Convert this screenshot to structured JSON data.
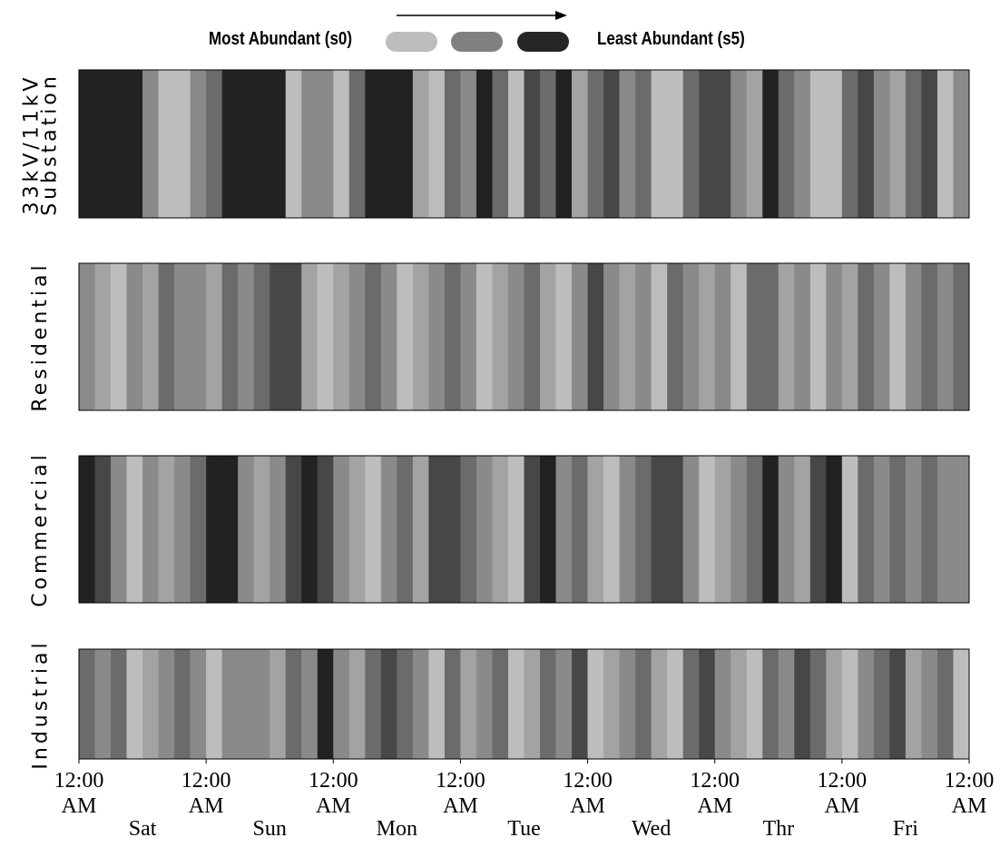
{
  "chart_data": {
    "type": "state-strip",
    "legend": {
      "labels": [
        "Most Abundant (s0)",
        "Least Abundant (s5)"
      ],
      "swatch_colors": [
        "#bdbdbd",
        "#808080",
        "#262626"
      ]
    },
    "state_colors": [
      "#bdbdbd",
      "#a3a3a3",
      "#8a8a8a",
      "#6b6b6b",
      "#474747",
      "#222222"
    ],
    "xlim": [
      0,
      168
    ],
    "xticks": [
      {
        "value": 0,
        "label": "12:00 AM"
      },
      {
        "value": 24,
        "label": "12:00 AM"
      },
      {
        "value": 48,
        "label": "12:00 AM"
      },
      {
        "value": 72,
        "label": "12:00 AM"
      },
      {
        "value": 96,
        "label": "12:00 AM"
      },
      {
        "value": 120,
        "label": "12:00 AM"
      },
      {
        "value": 144,
        "label": "12:00 AM"
      },
      {
        "value": 168,
        "label": "12:00 AM"
      }
    ],
    "categories": [
      "Sat",
      "Sun",
      "Mon",
      "Tue",
      "Wed",
      "Thr",
      "Fri"
    ],
    "series": [
      {
        "name": "33kV/11kV Substation",
        "values": [
          5,
          5,
          5,
          5,
          2,
          0,
          0,
          2,
          3,
          5,
          5,
          5,
          5,
          0,
          2,
          2,
          0,
          3,
          5,
          5,
          5,
          1,
          0,
          3,
          2,
          5,
          3,
          0,
          4,
          3,
          5,
          1,
          3,
          4,
          2,
          3,
          0,
          0,
          3,
          4,
          4,
          2,
          1,
          5,
          3,
          2,
          0,
          0,
          3,
          4,
          2,
          1,
          3,
          4,
          0,
          2
        ]
      },
      {
        "name": "Residential",
        "values": [
          2,
          1,
          0,
          2,
          1,
          3,
          2,
          2,
          1,
          3,
          2,
          3,
          4,
          4,
          1,
          0,
          1,
          2,
          3,
          2,
          0,
          1,
          2,
          3,
          2,
          0,
          1,
          2,
          3,
          1,
          0,
          2,
          4,
          2,
          1,
          2,
          0,
          3,
          2,
          1,
          2,
          0,
          3,
          3,
          1,
          2,
          0,
          2,
          1,
          3,
          2,
          0,
          2,
          3,
          2,
          3
        ]
      },
      {
        "name": "Commercial",
        "values": [
          5,
          4,
          2,
          0,
          2,
          1,
          2,
          3,
          5,
          5,
          2,
          1,
          2,
          4,
          5,
          4,
          2,
          1,
          0,
          2,
          3,
          1,
          4,
          4,
          3,
          2,
          1,
          0,
          4,
          5,
          2,
          3,
          1,
          0,
          2,
          3,
          4,
          4,
          2,
          0,
          1,
          2,
          3,
          5,
          2,
          1,
          4,
          5,
          0,
          3,
          2,
          3,
          2,
          3,
          2,
          2
        ]
      },
      {
        "name": "Industrial",
        "values": [
          3,
          2,
          3,
          0,
          1,
          2,
          3,
          2,
          0,
          2,
          2,
          2,
          1,
          3,
          2,
          5,
          2,
          1,
          3,
          4,
          3,
          2,
          0,
          3,
          1,
          2,
          3,
          0,
          1,
          3,
          2,
          4,
          0,
          1,
          2,
          3,
          1,
          0,
          3,
          4,
          2,
          1,
          0,
          3,
          2,
          4,
          3,
          1,
          0,
          2,
          3,
          4,
          1,
          2,
          3,
          0
        ]
      }
    ]
  }
}
